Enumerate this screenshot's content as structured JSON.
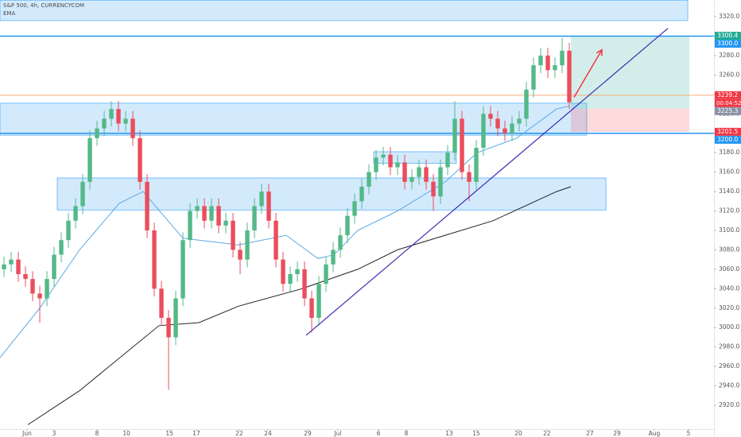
{
  "chart_data": {
    "type": "candlestick",
    "title": "S&P 500, 4h, CURRENCYCOM",
    "indicator_label": "EMA",
    "up_color": "#53b987",
    "down_color": "#eb4d5c",
    "xlim": [
      -1.78,
      48.11
    ],
    "ylim": [
      2895.5,
      3337.2
    ],
    "x": [
      -1.5,
      -1,
      -0.5,
      0,
      0.5,
      1,
      1.5,
      2,
      2.5,
      3,
      3.5,
      4,
      4.5,
      5,
      5.5,
      6,
      6.5,
      7,
      7.5,
      8,
      8.5,
      9,
      9.5,
      10,
      10.5,
      11,
      11.5,
      12,
      12.5,
      13,
      13.5,
      14,
      14.5,
      15,
      15.5,
      16,
      16.5,
      17,
      17.5,
      18,
      18.5,
      19,
      19.5,
      20,
      20.5,
      21,
      21.5,
      22,
      22.5,
      23,
      23.5,
      24,
      24.5,
      25,
      25.5,
      26,
      26.5,
      27,
      27.5,
      28,
      28.5,
      29,
      29.5,
      30,
      30.5,
      31,
      31.5,
      32,
      32.5,
      33,
      33.5,
      34,
      34.5,
      35,
      35.5,
      36,
      36.5,
      37,
      37.5,
      38
    ],
    "open": [
      3060,
      3065,
      3070,
      3055,
      3050,
      3035,
      3030,
      3050,
      3075,
      3090,
      3110,
      3125,
      3150,
      3195,
      3205,
      3215,
      3225,
      3210,
      3215,
      3195,
      3150,
      3100,
      3040,
      3010,
      2990,
      3030,
      3090,
      3120,
      3125,
      3110,
      3125,
      3105,
      3110,
      3080,
      3070,
      3100,
      3125,
      3140,
      3110,
      3070,
      3045,
      3055,
      3060,
      3030,
      3010,
      3045,
      3065,
      3080,
      3095,
      3115,
      3130,
      3145,
      3160,
      3175,
      3178,
      3165,
      3170,
      3150,
      3155,
      3165,
      3150,
      3135,
      3165,
      3180,
      3215,
      3160,
      3150,
      3185,
      3220,
      3215,
      3205,
      3200,
      3210,
      3215,
      3245,
      3270,
      3280,
      3265,
      3270,
      3285
    ],
    "high": [
      3073,
      3078,
      3078,
      3063,
      3058,
      3043,
      3058,
      3083,
      3098,
      3118,
      3133,
      3158,
      3203,
      3213,
      3223,
      3233,
      3233,
      3223,
      3223,
      3203,
      3158,
      3108,
      3048,
      3018,
      3038,
      3098,
      3128,
      3133,
      3133,
      3133,
      3133,
      3118,
      3118,
      3088,
      3108,
      3133,
      3148,
      3148,
      3118,
      3078,
      3063,
      3068,
      3068,
      3038,
      3053,
      3073,
      3088,
      3103,
      3123,
      3138,
      3153,
      3168,
      3183,
      3186,
      3186,
      3178,
      3178,
      3163,
      3173,
      3173,
      3158,
      3173,
      3188,
      3233,
      3223,
      3168,
      3193,
      3228,
      3228,
      3223,
      3213,
      3218,
      3223,
      3253,
      3278,
      3288,
      3288,
      3278,
      3298,
      3293
    ],
    "low": [
      3052,
      3057,
      3047,
      3042,
      3027,
      3005,
      3022,
      3042,
      3067,
      3082,
      3102,
      3117,
      3142,
      3187,
      3197,
      3207,
      3202,
      3202,
      3187,
      3142,
      3092,
      3032,
      3002,
      2936,
      2982,
      3022,
      3082,
      3112,
      3102,
      3102,
      3097,
      3097,
      3072,
      3055,
      3062,
      3092,
      3117,
      3102,
      3062,
      3037,
      3037,
      3047,
      3022,
      2995,
      3002,
      3037,
      3057,
      3072,
      3087,
      3107,
      3122,
      3137,
      3152,
      3167,
      3157,
      3157,
      3142,
      3142,
      3147,
      3142,
      3120,
      3127,
      3157,
      3172,
      3152,
      3130,
      3142,
      3177,
      3207,
      3197,
      3192,
      3192,
      3202,
      3207,
      3237,
      3262,
      3257,
      3257,
      3262,
      3225
    ],
    "close": [
      3065,
      3070,
      3055,
      3050,
      3035,
      3030,
      3050,
      3075,
      3090,
      3110,
      3125,
      3150,
      3195,
      3205,
      3215,
      3225,
      3210,
      3215,
      3195,
      3150,
      3100,
      3040,
      3010,
      2990,
      3030,
      3090,
      3120,
      3125,
      3110,
      3125,
      3105,
      3110,
      3080,
      3070,
      3100,
      3125,
      3140,
      3110,
      3070,
      3045,
      3055,
      3060,
      3030,
      3010,
      3045,
      3065,
      3080,
      3095,
      3115,
      3130,
      3145,
      3160,
      3175,
      3178,
      3165,
      3170,
      3150,
      3155,
      3165,
      3150,
      3135,
      3165,
      3180,
      3215,
      3160,
      3150,
      3185,
      3220,
      3215,
      3205,
      3200,
      3210,
      3215,
      3245,
      3270,
      3280,
      3265,
      3270,
      3285,
      3232
    ],
    "lines": [
      {
        "color": "#5aa9e6",
        "x": [
          -1.78,
          1,
          3.78,
          6.56,
          8.22,
          11,
          14.89,
          18.22,
          20.44,
          21.56,
          23.22,
          26,
          29.33,
          31.56,
          34.33,
          37.11,
          38
        ],
        "values": [
          2969,
          3020,
          3080,
          3128,
          3140,
          3092,
          3085,
          3095,
          3071,
          3075,
          3100,
          3120,
          3150,
          3180,
          3195,
          3225,
          3228
        ]
      },
      {
        "color": "#222222",
        "x": [
          0.17,
          3.78,
          9.33,
          12.11,
          14.89,
          19.33,
          23.22,
          26,
          29.33,
          32.67,
          37.11,
          38.11
        ],
        "values": [
          2900,
          2935,
          3002,
          3005,
          3022,
          3040,
          3060,
          3080,
          3095,
          3110,
          3140,
          3145
        ]
      }
    ],
    "zones": [
      {
        "x": [
          -1.78,
          46.28
        ],
        "y": [
          3316,
          3337
        ]
      },
      {
        "x": [
          -1.78,
          39.22
        ],
        "y": [
          3198,
          3231
        ]
      },
      {
        "x": [
          24.33,
          30.11
        ],
        "y": [
          3169,
          3181
        ]
      },
      {
        "x": [
          2.22,
          40.56
        ],
        "y": [
          3121,
          3154
        ]
      }
    ],
    "zone_color": "#2196f3",
    "hlines": [
      {
        "value": 3300,
        "color": "#2196f3",
        "width": 1.5
      },
      {
        "value": 3200,
        "color": "#2196f3",
        "width": 1.5
      },
      {
        "value": 3239.2,
        "color": "#f7a26b",
        "width": 0.8
      }
    ],
    "trendline": {
      "x": [
        19.61,
        44.89
      ],
      "values": [
        2992,
        3308
      ],
      "color": "#3d2bb5"
    },
    "arrow": {
      "x": [
        38.33,
        40.28
      ],
      "values": [
        3237,
        3286
      ],
      "color": "#f23645"
    },
    "position": {
      "x": [
        38.11,
        46.39
      ],
      "target": 3300.4,
      "entry": 3225.3,
      "stop": 3201.5
    },
    "price_labels": [
      {
        "value": 3300.4,
        "label": "3300.4",
        "color": "#22ab94"
      },
      {
        "value": 3300.0,
        "label": "3300.0",
        "color": "#2196f3"
      },
      {
        "value": 3239.2,
        "label": "3239.2",
        "color": "#f23645"
      },
      {
        "value": 3225.3,
        "label": "3225.3",
        "color": "#8a93a6"
      },
      {
        "value": 3201.5,
        "label": "3201.5",
        "color": "#f23645"
      },
      {
        "value": 3200.0,
        "label": "3200.0",
        "color": "#2196f3"
      }
    ],
    "countdown": "00:04:52",
    "yticks": [
      {
        "value": 2920,
        "label": "2920.0"
      },
      {
        "value": 2940,
        "label": "2940.0"
      },
      {
        "value": 2960,
        "label": "2960.0"
      },
      {
        "value": 2980,
        "label": "2980.0"
      },
      {
        "value": 3000,
        "label": "3000.0"
      },
      {
        "value": 3020,
        "label": "3020.0"
      },
      {
        "value": 3040,
        "label": "3040.0"
      },
      {
        "value": 3060,
        "label": "3060.0"
      },
      {
        "value": 3080,
        "label": "3080.0"
      },
      {
        "value": 3100,
        "label": "3100.0"
      },
      {
        "value": 3120,
        "label": "3120.0"
      },
      {
        "value": 3140,
        "label": "3140.0"
      },
      {
        "value": 3160,
        "label": "3160.0"
      },
      {
        "value": 3180,
        "label": "3180.0"
      },
      {
        "value": 3200,
        "label": "3200.0"
      },
      {
        "value": 3220,
        "label": "3220.0"
      },
      {
        "value": 3240,
        "label": "3240.0"
      },
      {
        "value": 3260,
        "label": "3260.0"
      },
      {
        "value": 3280,
        "label": "3280.0"
      },
      {
        "value": 3300,
        "label": "3300.0"
      },
      {
        "value": 3320,
        "label": "3320.0"
      }
    ],
    "xticks": [
      {
        "value": 0.11,
        "label": "Jun"
      },
      {
        "value": 2,
        "label": "3"
      },
      {
        "value": 5,
        "label": "8"
      },
      {
        "value": 7.06,
        "label": "10"
      },
      {
        "value": 10.06,
        "label": "15"
      },
      {
        "value": 11.94,
        "label": "17"
      },
      {
        "value": 14.94,
        "label": "22"
      },
      {
        "value": 16.94,
        "label": "24"
      },
      {
        "value": 19.72,
        "label": "29"
      },
      {
        "value": 21.83,
        "label": "Jul"
      },
      {
        "value": 24.67,
        "label": "6"
      },
      {
        "value": 26.61,
        "label": "8"
      },
      {
        "value": 29.61,
        "label": "13"
      },
      {
        "value": 31.5,
        "label": "15"
      },
      {
        "value": 34.44,
        "label": "20"
      },
      {
        "value": 36.44,
        "label": "22"
      },
      {
        "value": 39.44,
        "label": "27"
      },
      {
        "value": 41.33,
        "label": "29"
      },
      {
        "value": 43.94,
        "label": "Aug"
      },
      {
        "value": 46.33,
        "label": "5"
      }
    ]
  }
}
